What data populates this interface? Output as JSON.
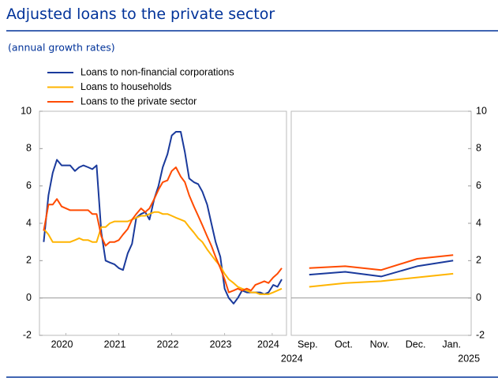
{
  "header": {
    "title": "Adjusted loans to the private sector",
    "subtitle": "(annual growth rates)"
  },
  "chart_data": [
    {
      "type": "line",
      "x": [
        2020.08,
        2020.17,
        2020.25,
        2020.33,
        2020.42,
        2020.5,
        2020.58,
        2020.67,
        2020.75,
        2020.83,
        2020.92,
        2021,
        2021.08,
        2021.17,
        2021.25,
        2021.33,
        2021.42,
        2021.5,
        2021.58,
        2021.67,
        2021.75,
        2021.83,
        2021.92,
        2022,
        2022.08,
        2022.17,
        2022.25,
        2022.33,
        2022.42,
        2022.5,
        2022.58,
        2022.67,
        2022.75,
        2022.83,
        2022.92,
        2023,
        2023.08,
        2023.17,
        2023.25,
        2023.33,
        2023.42,
        2023.5,
        2023.58,
        2023.67,
        2023.75,
        2023.83,
        2023.92,
        2024,
        2024.08,
        2024.17,
        2024.25,
        2024.33,
        2024.42,
        2024.5,
        2024.58
      ],
      "series": [
        {
          "name": "Loans to non-financial corporations",
          "color": "#1a3a9c",
          "values": [
            3.0,
            5.5,
            6.7,
            7.4,
            7.1,
            7.1,
            7.1,
            6.8,
            7.0,
            7.1,
            7.0,
            6.9,
            7.1,
            3.5,
            2.0,
            1.9,
            1.8,
            1.6,
            1.5,
            2.4,
            2.9,
            4.3,
            4.5,
            4.6,
            4.2,
            5.3,
            6.0,
            7.0,
            7.7,
            8.7,
            8.9,
            8.9,
            7.8,
            6.4,
            6.2,
            6.1,
            5.7,
            5.0,
            4.0,
            3.0,
            2.2,
            0.5,
            0.0,
            -0.3,
            0.0,
            0.4,
            0.3,
            0.3,
            0.3,
            0.3,
            0.2,
            0.3,
            0.7,
            0.6,
            1.0
          ]
        },
        {
          "name": "Loans to households",
          "color": "#ffb400",
          "values": [
            3.7,
            3.4,
            3.0,
            3.0,
            3.0,
            3.0,
            3.0,
            3.1,
            3.2,
            3.1,
            3.1,
            3.0,
            3.0,
            3.8,
            3.8,
            4.0,
            4.1,
            4.1,
            4.1,
            4.1,
            4.2,
            4.3,
            4.4,
            4.4,
            4.5,
            4.6,
            4.6,
            4.5,
            4.5,
            4.4,
            4.3,
            4.2,
            4.1,
            3.8,
            3.5,
            3.2,
            3.0,
            2.6,
            2.3,
            2.0,
            1.7,
            1.3,
            1.0,
            0.8,
            0.6,
            0.5,
            0.4,
            0.3,
            0.3,
            0.2,
            0.2,
            0.2,
            0.3,
            0.4,
            0.5
          ]
        },
        {
          "name": "Loans to the private sector",
          "color": "#ff4b00",
          "values": [
            3.6,
            5.0,
            5.0,
            5.3,
            4.9,
            4.8,
            4.7,
            4.7,
            4.7,
            4.7,
            4.7,
            4.5,
            4.5,
            3.3,
            2.8,
            3.0,
            3.0,
            3.1,
            3.4,
            3.7,
            4.2,
            4.5,
            4.8,
            4.6,
            4.8,
            5.3,
            5.8,
            6.2,
            6.3,
            6.8,
            7.0,
            6.5,
            6.2,
            5.5,
            4.9,
            4.4,
            3.9,
            3.3,
            2.8,
            2.2,
            1.6,
            1.0,
            0.3,
            0.4,
            0.5,
            0.4,
            0.5,
            0.4,
            0.7,
            0.8,
            0.9,
            0.8,
            1.1,
            1.3,
            1.6
          ]
        }
      ],
      "xlim": [
        2020,
        2024.67
      ],
      "xticks": [
        {
          "value": 2020.5,
          "label": "2020"
        },
        {
          "value": 2021.5,
          "label": "2021"
        },
        {
          "value": 2022.5,
          "label": "2022"
        },
        {
          "value": 2023.5,
          "label": "2023"
        },
        {
          "value": 2024.4,
          "label": "2024"
        }
      ],
      "ylim": [
        -2,
        10
      ],
      "yticks": [
        -2,
        0,
        2,
        4,
        6,
        8,
        10
      ]
    },
    {
      "type": "line",
      "categories": [
        "Sep.",
        "Oct.",
        "Nov.",
        "Dec.",
        "Jan."
      ],
      "annotations": [
        "2024",
        "2025"
      ],
      "series": [
        {
          "color": "#1a3a9c",
          "values": [
            1.25,
            1.4,
            1.15,
            1.7,
            2.0
          ]
        },
        {
          "color": "#ffb400",
          "values": [
            0.6,
            0.8,
            0.9,
            1.1,
            1.3
          ]
        },
        {
          "color": "#ff4b00",
          "values": [
            1.6,
            1.7,
            1.5,
            2.1,
            2.3
          ]
        }
      ],
      "ylim": [
        -2,
        10
      ],
      "yticks": [
        -2,
        0,
        2,
        4,
        6,
        8,
        10
      ]
    }
  ]
}
